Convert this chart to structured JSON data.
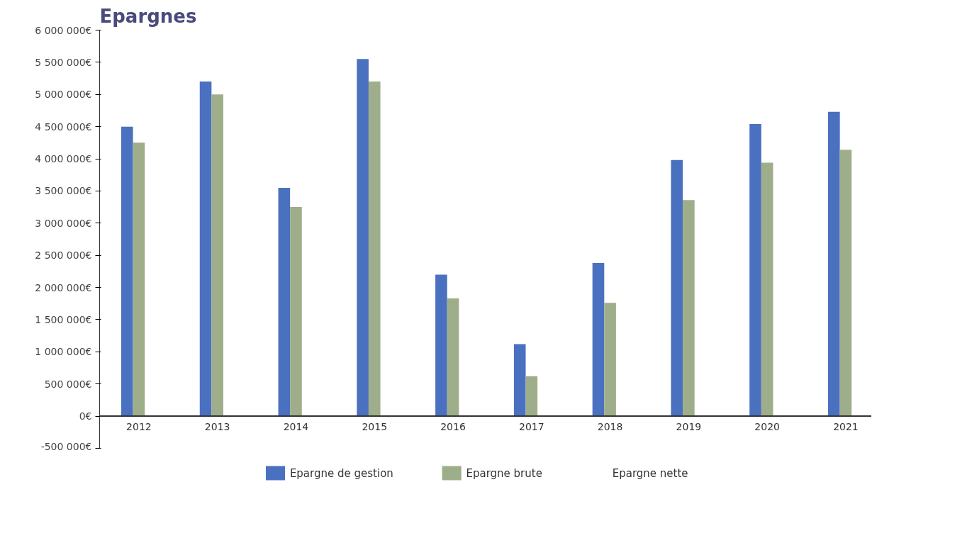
{
  "chart_data": {
    "type": "bar",
    "title": "Epargnes",
    "categories": [
      "2012",
      "2013",
      "2014",
      "2015",
      "2016",
      "2017",
      "2018",
      "2019",
      "2020",
      "2021"
    ],
    "series": [
      {
        "name": "Epargne de gestion",
        "color": "#4a70c0",
        "values": [
          4500000,
          5200000,
          3550000,
          5550000,
          2200000,
          1120000,
          2380000,
          3980000,
          4540000,
          4730000
        ]
      },
      {
        "name": "Epargne brute",
        "color": "#9fae8a",
        "values": [
          4250000,
          5000000,
          3250000,
          5200000,
          1830000,
          620000,
          1760000,
          3360000,
          3940000,
          4140000
        ]
      },
      {
        "name": "Epargne nette",
        "values": [
          null,
          null,
          null,
          null,
          null,
          null,
          null,
          null,
          null,
          null
        ]
      }
    ],
    "ylim": [
      -500000,
      6000000
    ],
    "yticks": [
      {
        "value": -500000,
        "label": "-500 000€"
      },
      {
        "value": 0,
        "label": "0€"
      },
      {
        "value": 500000,
        "label": "500 000€"
      },
      {
        "value": 1000000,
        "label": "1 000 000€"
      },
      {
        "value": 1500000,
        "label": "1 500 000€"
      },
      {
        "value": 2000000,
        "label": "2 000 000€"
      },
      {
        "value": 2500000,
        "label": "2 500 000€"
      },
      {
        "value": 3000000,
        "label": "3 000 000€"
      },
      {
        "value": 3500000,
        "label": "3 500 000€"
      },
      {
        "value": 4000000,
        "label": "4 000 000€"
      },
      {
        "value": 4500000,
        "label": "4 500 000€"
      },
      {
        "value": 5000000,
        "label": "5 000 000€"
      },
      {
        "value": 5500000,
        "label": "5 500 000€"
      },
      {
        "value": 6000000,
        "label": "6 000 000€"
      }
    ],
    "grid": false,
    "legend": "bottom"
  }
}
